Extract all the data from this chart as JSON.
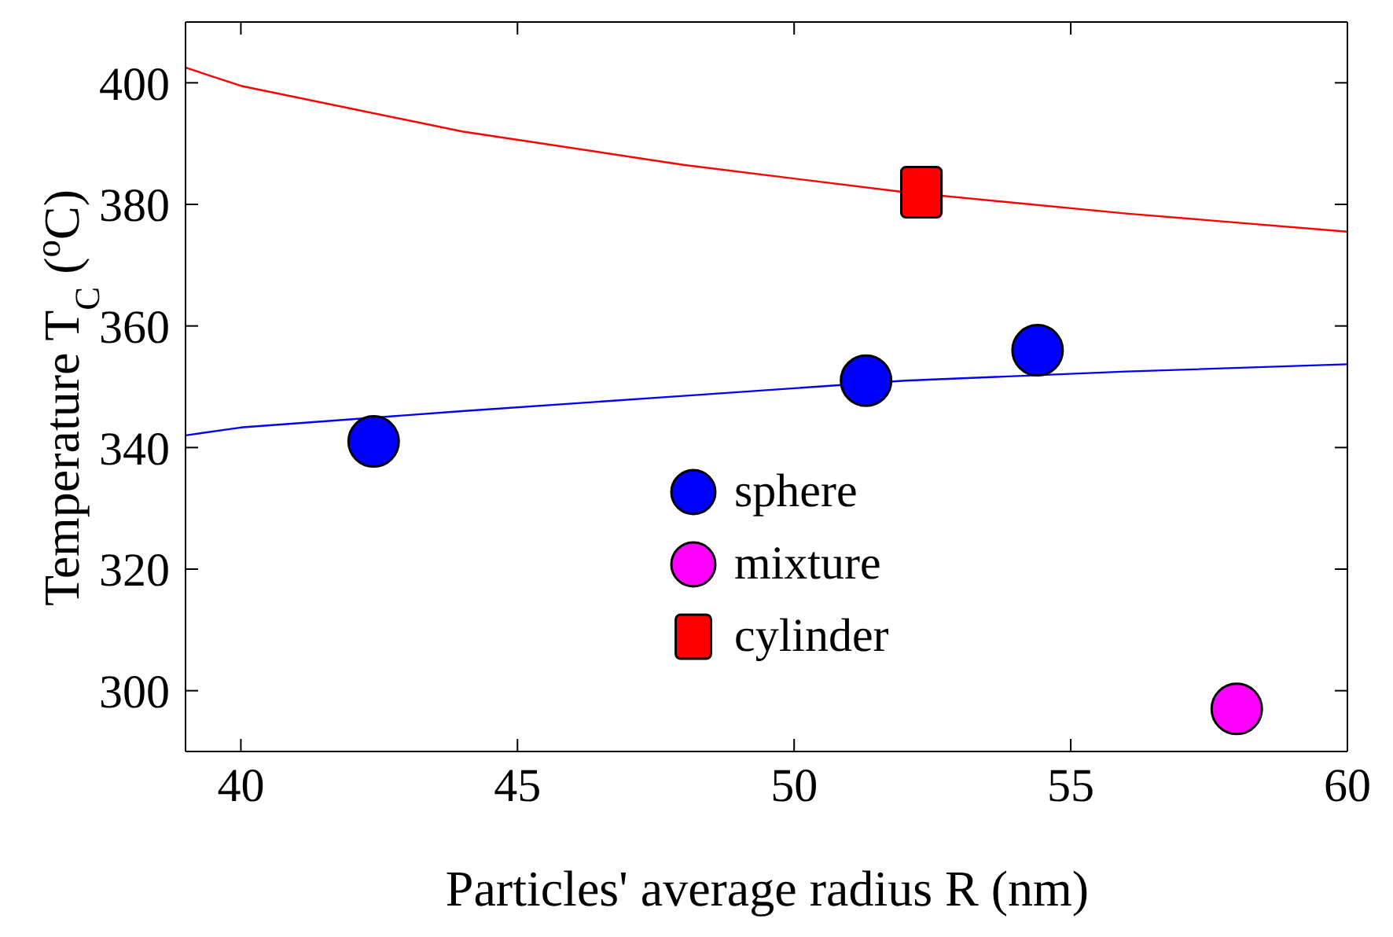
{
  "chart_data": {
    "type": "scatter",
    "xlabel": "Particles' average radius R  (nm)",
    "ylabel": "Temperature  T$_{C}$ ($^{o}$C)",
    "xlim": [
      39,
      60
    ],
    "xticks": [
      40,
      45,
      50,
      55,
      60
    ],
    "ylim": [
      290,
      410
    ],
    "yticks": [
      300,
      320,
      340,
      360,
      380,
      400
    ],
    "legend": "center",
    "series": [
      {
        "name": "sphere",
        "marker": "circle",
        "color": "#0000ff",
        "x": [
          42.4,
          51.3,
          54.4
        ],
        "values": [
          341,
          351,
          356
        ]
      },
      {
        "name": "mixture",
        "marker": "circle",
        "color": "#ff00ff",
        "x": [
          58
        ],
        "values": [
          297
        ]
      },
      {
        "name": "cylinder",
        "marker": "square",
        "color": "#ff0000",
        "x": [
          52.3
        ],
        "values": [
          382
        ]
      },
      {
        "type": "line",
        "color": "#ff0000",
        "x": [
          39,
          40,
          44,
          48,
          52,
          56,
          60
        ],
        "values": [
          402.5,
          399.5,
          392,
          386.5,
          382,
          378.5,
          375.5
        ]
      },
      {
        "type": "line",
        "color": "#0000ff",
        "x": [
          39,
          40,
          44,
          48,
          52,
          56,
          60
        ],
        "values": [
          342,
          343.3,
          346,
          348.5,
          351,
          352.5,
          353.7
        ]
      }
    ]
  }
}
